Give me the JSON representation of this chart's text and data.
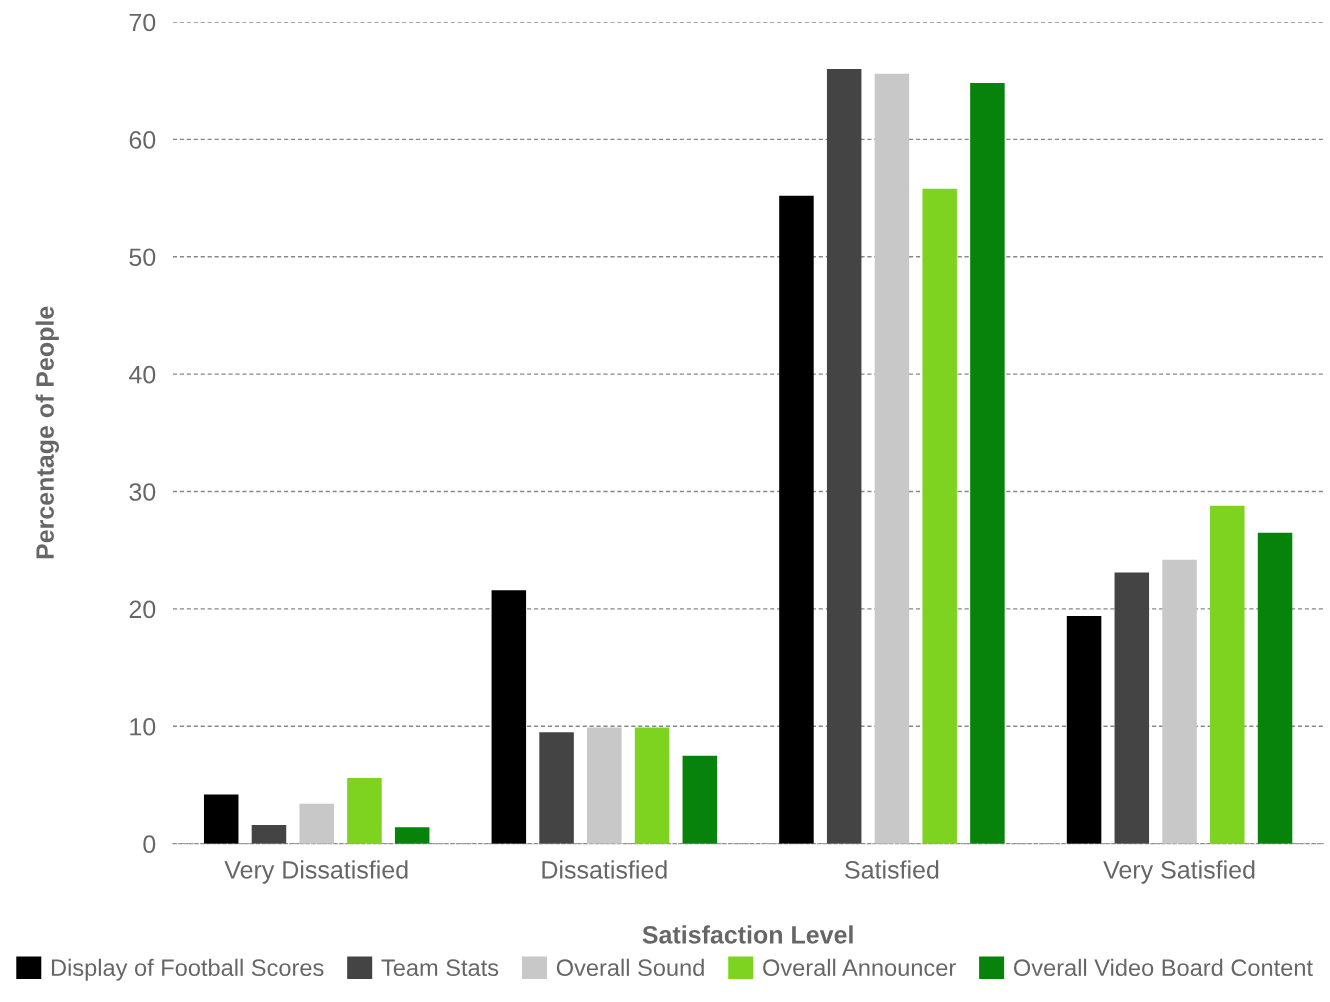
{
  "chart_data": {
    "type": "bar",
    "xlabel": "Satisfaction Level",
    "ylabel": "Percentage of People",
    "categories": [
      "Very Dissatisfied",
      "Dissatisfied",
      "Satisfied",
      "Very Satisfied"
    ],
    "series": [
      {
        "name": "Display of Football Scores",
        "color": "#000000",
        "values": [
          4.2,
          21.6,
          55.2,
          19.4
        ]
      },
      {
        "name": "Team Stats",
        "color": "#444444",
        "values": [
          1.6,
          9.5,
          66.0,
          23.1
        ]
      },
      {
        "name": "Overall Sound",
        "color": "#c8c8c8",
        "values": [
          3.4,
          9.9,
          65.6,
          24.2
        ]
      },
      {
        "name": "Overall Announcer",
        "color": "#7ed321",
        "values": [
          5.6,
          9.9,
          55.8,
          28.8
        ]
      },
      {
        "name": "Overall Video Board Content",
        "color": "#07820a",
        "values": [
          1.4,
          7.5,
          64.8,
          26.5
        ]
      }
    ],
    "ylim": [
      0,
      70
    ],
    "yticks": [
      0,
      10,
      20,
      30,
      40,
      50,
      60,
      70
    ],
    "grid": "y",
    "legend": "bottom"
  }
}
